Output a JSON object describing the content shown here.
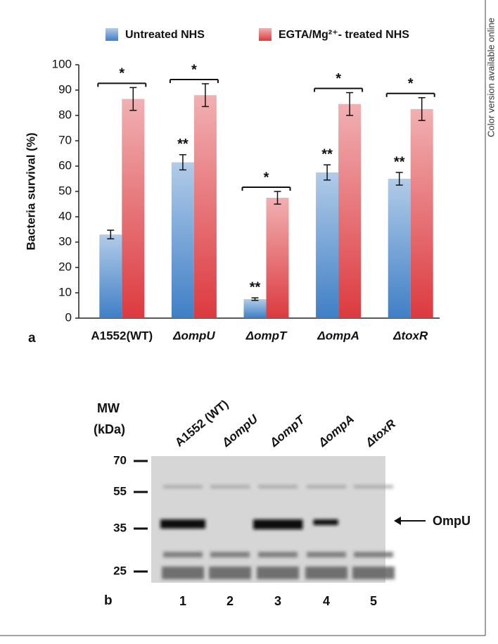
{
  "chart_data": {
    "type": "bar",
    "y_label": "Bacteria survival (%)",
    "categories": [
      "A1552(WT)",
      "ΔompU",
      "ΔompT",
      "ΔompA",
      "ΔtoxR"
    ],
    "series": [
      {
        "name": "Untreated NHS",
        "color": "#3f7fc6",
        "values": [
          33,
          61.5,
          7.5,
          57.5,
          55
        ],
        "errors": [
          1.7,
          3,
          0.5,
          3,
          2.5
        ],
        "markers": [
          null,
          "**",
          "**",
          "**",
          "**"
        ]
      },
      {
        "name": "EGTA/Mg²⁺- treated NHS",
        "color": "#dc3a3f",
        "values": [
          86.5,
          88,
          47.5,
          84.5,
          82.5
        ],
        "errors": [
          4.5,
          4.5,
          2.5,
          4.5,
          4.5
        ]
      }
    ],
    "significance": [
      "*",
      "*",
      "*",
      "*",
      "*"
    ],
    "ylim": [
      0,
      100
    ],
    "yticks": [
      0,
      10,
      20,
      30,
      40,
      50,
      60,
      70,
      80,
      90,
      100
    ],
    "panel_label": "a"
  },
  "blot": {
    "panel_label": "b",
    "mw_title": "MW",
    "mw_unit": "(kDa)",
    "mw_markers": [
      "70",
      "55",
      "35",
      "25"
    ],
    "lanes": [
      {
        "label": "A1552 (WT)",
        "number": "1"
      },
      {
        "label": "ΔompU",
        "number": "2"
      },
      {
        "label": "ΔompT",
        "number": "3"
      },
      {
        "label": "ΔompA",
        "number": "4"
      },
      {
        "label": "ΔtoxR",
        "number": "5"
      }
    ],
    "band_label": "OmpU"
  },
  "side_note": "Color version available online"
}
